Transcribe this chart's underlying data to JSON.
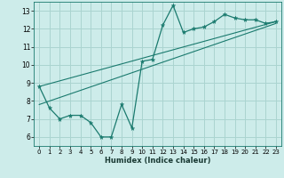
{
  "xlabel": "Humidex (Indice chaleur)",
  "bg_color": "#cdecea",
  "grid_color": "#aad4d0",
  "line_color": "#1a7a6e",
  "xlim": [
    -0.5,
    23.5
  ],
  "ylim": [
    5.5,
    13.5
  ],
  "xticks": [
    0,
    1,
    2,
    3,
    4,
    5,
    6,
    7,
    8,
    9,
    10,
    11,
    12,
    13,
    14,
    15,
    16,
    17,
    18,
    19,
    20,
    21,
    22,
    23
  ],
  "yticks": [
    6,
    7,
    8,
    9,
    10,
    11,
    12,
    13
  ],
  "series1_x": [
    0,
    1,
    2,
    3,
    4,
    5,
    6,
    7,
    8,
    9,
    10,
    11,
    12,
    13,
    14,
    15,
    16,
    17,
    18,
    19,
    20,
    21,
    22,
    23
  ],
  "series1_y": [
    8.8,
    7.6,
    7.0,
    7.2,
    7.2,
    6.8,
    6.0,
    6.0,
    7.8,
    6.5,
    10.2,
    10.3,
    12.2,
    13.3,
    11.8,
    12.0,
    12.1,
    12.4,
    12.8,
    12.6,
    12.5,
    12.5,
    12.3,
    12.4
  ],
  "series2_x": [
    0,
    23
  ],
  "series2_y": [
    7.8,
    12.3
  ],
  "series3_x": [
    0,
    23
  ],
  "series3_y": [
    8.8,
    12.4
  ]
}
